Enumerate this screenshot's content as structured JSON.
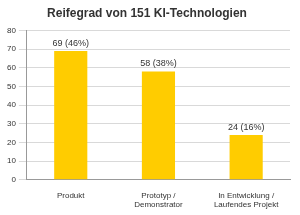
{
  "chart_data": {
    "type": "bar",
    "title": "Reifegrad von 151 KI-Technologien",
    "categories": [
      "Produkt",
      "Prototyp / Demonstrator",
      "In Entwicklung / Laufendes Projekt"
    ],
    "values": [
      69,
      58,
      24
    ],
    "value_labels": [
      "69 (46%)",
      "58 (38%)",
      "24 (16%)"
    ],
    "color": "#ffcc00",
    "ylim": [
      0,
      80
    ],
    "yticks": [
      0,
      10,
      20,
      30,
      40,
      50,
      60,
      70,
      80
    ],
    "grid": true,
    "data_labels": true
  }
}
